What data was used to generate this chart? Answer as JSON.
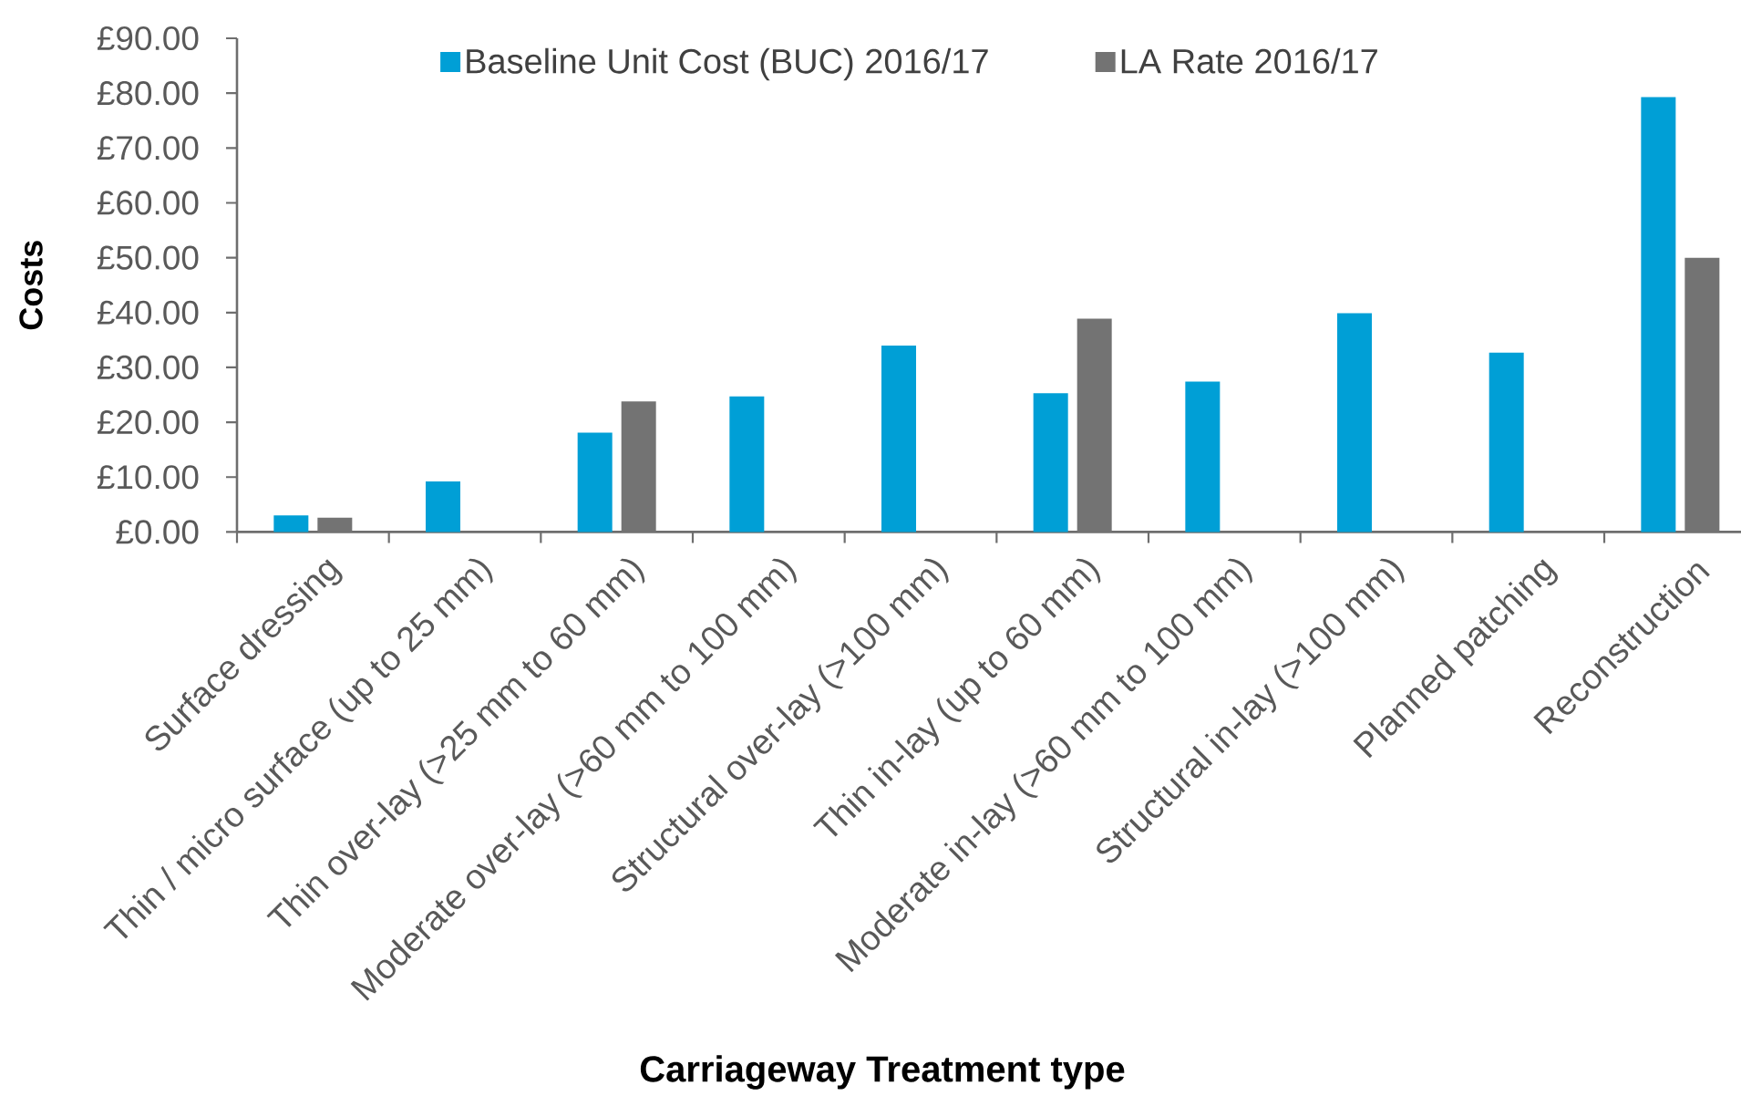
{
  "chart_data": {
    "type": "bar",
    "xlabel": "Carriageway Treatment type",
    "ylabel": "Costs",
    "categories": [
      "Surface dressing",
      "Thin / micro surface (up to 25 mm)",
      "Thin over-lay (>25 mm to 60 mm)",
      "Moderate over-lay (>60 mm to 100 mm)",
      "Structural over-lay (>100 mm)",
      "Thin in-lay (up to 60 mm)",
      "Moderate in-lay (>60 mm to 100 mm)",
      "Structural in-lay (>100 mm)",
      "Planned patching",
      "Reconstruction"
    ],
    "series": [
      {
        "name": "Baseline Unit Cost (BUC) 2016/17",
        "color": "#009fd6",
        "values": [
          3.0,
          9.2,
          18.1,
          24.7,
          34.0,
          25.3,
          27.4,
          39.9,
          32.7,
          79.3
        ]
      },
      {
        "name": "LA Rate 2016/17",
        "color": "#737373",
        "values": [
          2.6,
          null,
          23.8,
          null,
          null,
          38.9,
          null,
          null,
          null,
          50.0
        ]
      }
    ],
    "ylim": [
      0,
      90
    ],
    "yticks": [
      {
        "value": 0,
        "label": "£0.00"
      },
      {
        "value": 10,
        "label": "£10.00"
      },
      {
        "value": 20,
        "label": "£20.00"
      },
      {
        "value": 30,
        "label": "£30.00"
      },
      {
        "value": 40,
        "label": "£40.00"
      },
      {
        "value": 50,
        "label": "£50.00"
      },
      {
        "value": 60,
        "label": "£60.00"
      },
      {
        "value": 70,
        "label": "£70.00"
      },
      {
        "value": 80,
        "label": "£80.00"
      },
      {
        "value": 90,
        "label": "£90.00"
      }
    ],
    "legend": "top"
  }
}
